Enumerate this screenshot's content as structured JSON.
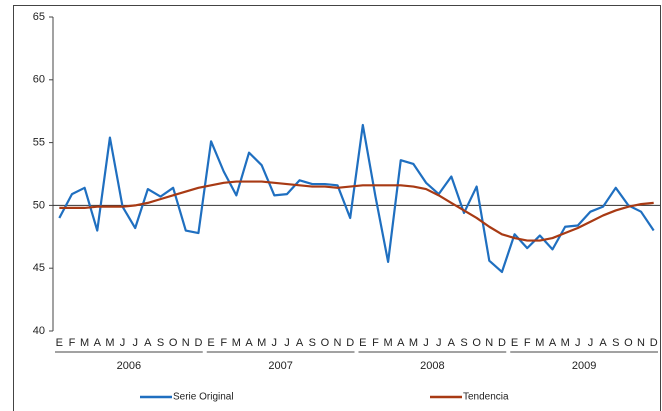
{
  "chart_data": {
    "type": "line",
    "categories": [
      "E",
      "F",
      "M",
      "A",
      "M",
      "J",
      "J",
      "A",
      "S",
      "O",
      "N",
      "D",
      "E",
      "F",
      "M",
      "A",
      "M",
      "J",
      "J",
      "A",
      "S",
      "O",
      "N",
      "D",
      "E",
      "F",
      "M",
      "A",
      "M",
      "J",
      "J",
      "A",
      "S",
      "O",
      "N",
      "D",
      "E",
      "F",
      "M",
      "A",
      "M",
      "J",
      "J",
      "A",
      "S",
      "O",
      "N",
      "D"
    ],
    "groups": [
      "2006",
      "2007",
      "2008",
      "2009"
    ],
    "series": [
      {
        "name": "Serie Original",
        "color": "#1f6fc0",
        "values": [
          49.0,
          50.9,
          51.4,
          48.0,
          55.4,
          49.9,
          48.2,
          51.3,
          50.7,
          51.4,
          48.0,
          47.8,
          55.1,
          52.7,
          50.8,
          54.2,
          53.2,
          50.8,
          50.9,
          52.0,
          51.7,
          51.7,
          51.6,
          49.0,
          56.4,
          50.7,
          45.5,
          53.6,
          53.3,
          51.8,
          50.9,
          52.3,
          49.4,
          51.5,
          45.6,
          44.7,
          47.7,
          46.6,
          47.6,
          46.5,
          48.3,
          48.4,
          49.5,
          49.9,
          51.4,
          50.0,
          49.5,
          48.0
        ]
      },
      {
        "name": "Tendencia",
        "color": "#a83a14",
        "values": [
          49.8,
          49.8,
          49.8,
          49.9,
          49.9,
          49.9,
          50.0,
          50.2,
          50.5,
          50.8,
          51.1,
          51.4,
          51.6,
          51.8,
          51.9,
          51.9,
          51.9,
          51.8,
          51.7,
          51.6,
          51.5,
          51.5,
          51.4,
          51.5,
          51.6,
          51.6,
          51.6,
          51.6,
          51.5,
          51.3,
          50.8,
          50.2,
          49.6,
          49.0,
          48.3,
          47.7,
          47.4,
          47.2,
          47.2,
          47.4,
          47.8,
          48.2,
          48.7,
          49.2,
          49.6,
          49.9,
          50.1,
          50.2
        ]
      }
    ],
    "ylim": [
      40,
      65
    ],
    "yticks": [
      40,
      45,
      50,
      55,
      60,
      65
    ],
    "hline": 50,
    "grid": false,
    "legend": "bottom"
  }
}
